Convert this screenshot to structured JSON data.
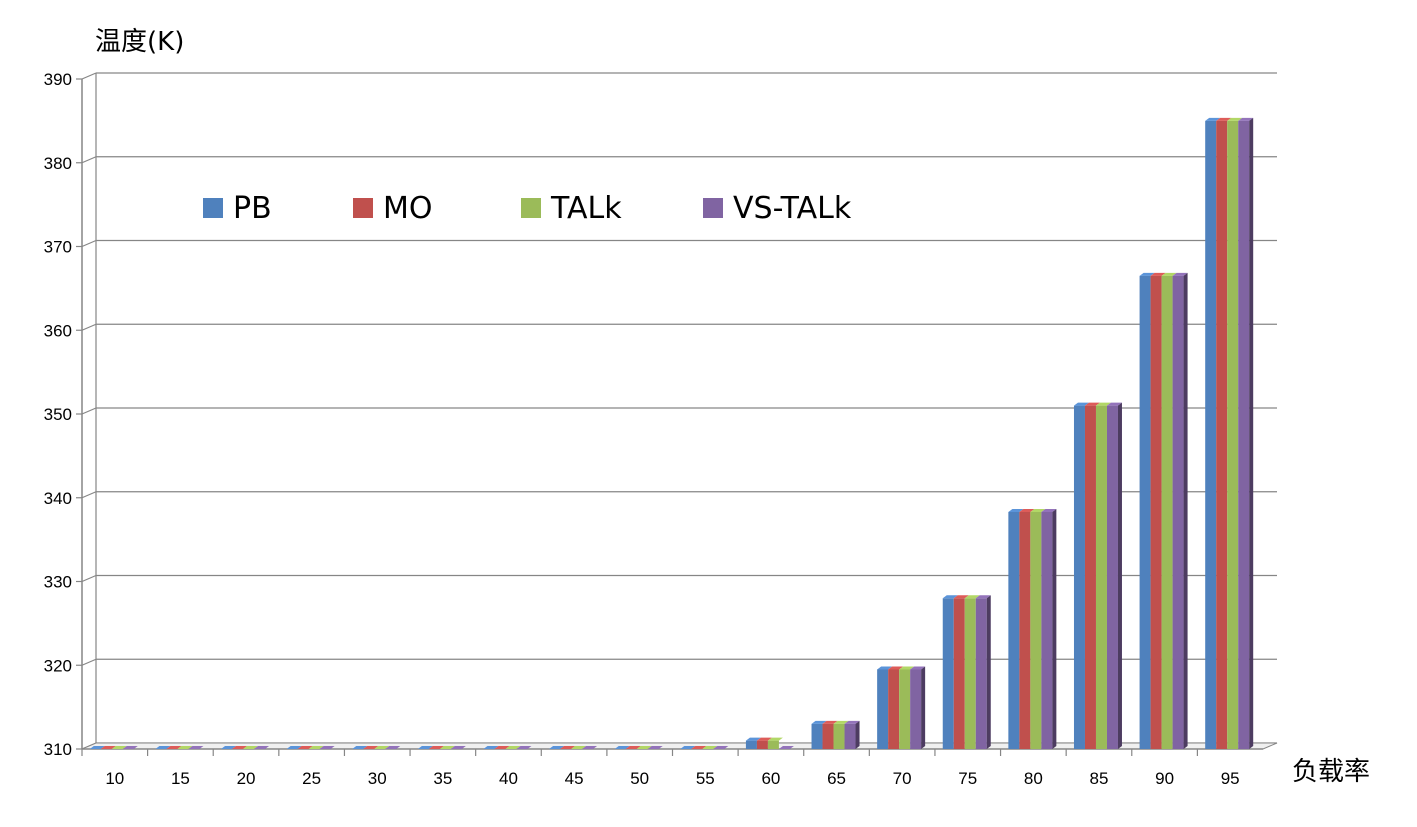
{
  "chart_data": {
    "type": "bar",
    "ylabel": "温度(K)",
    "xlabel": "负载率",
    "categories": [
      "10",
      "15",
      "20",
      "25",
      "30",
      "35",
      "40",
      "45",
      "50",
      "55",
      "60",
      "65",
      "70",
      "75",
      "80",
      "85",
      "90",
      "95"
    ],
    "ylim": [
      310,
      390
    ],
    "yticks": [
      310,
      320,
      330,
      340,
      350,
      360,
      370,
      380,
      390
    ],
    "grid": true,
    "legend_position": "top-left",
    "series": [
      {
        "name": "PB",
        "color": "#4f81bd",
        "values": [
          310,
          310,
          310,
          310,
          310,
          310,
          310,
          310,
          310,
          310,
          311,
          313,
          319.5,
          328,
          338.3,
          351,
          366.5,
          385
        ]
      },
      {
        "name": "MO",
        "color": "#c0504d",
        "values": [
          310,
          310,
          310,
          310,
          310,
          310,
          310,
          310,
          310,
          310,
          311,
          313,
          319.5,
          328,
          338.3,
          351,
          366.5,
          385
        ]
      },
      {
        "name": "TALk",
        "color": "#9bbb59",
        "values": [
          310,
          310,
          310,
          310,
          310,
          310,
          310,
          310,
          310,
          310,
          311,
          313,
          319.5,
          328,
          338.3,
          351,
          366.5,
          385
        ]
      },
      {
        "name": "VS-TALk",
        "color": "#8064a2",
        "values": [
          310,
          310,
          310,
          310,
          310,
          310,
          310,
          310,
          310,
          310,
          310,
          313,
          319.5,
          328,
          338.3,
          351,
          366.5,
          385
        ]
      }
    ]
  }
}
